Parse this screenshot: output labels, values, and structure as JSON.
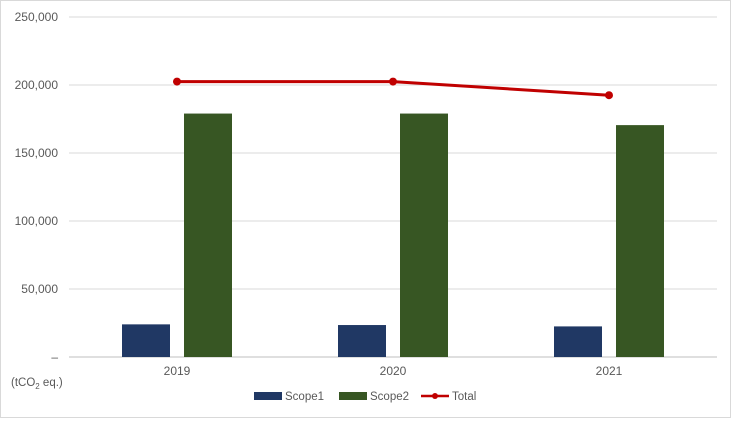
{
  "chart_data": {
    "type": "bar",
    "title": "",
    "unit_label": {
      "prefix": "(tCO",
      "subscript": "2",
      "suffix": " eq.)"
    },
    "categories": [
      "2019",
      "2020",
      "2021"
    ],
    "ylim": [
      0,
      250000
    ],
    "yticks": [
      {
        "value": 0,
        "label": "–"
      },
      {
        "value": 50000,
        "label": "50,000"
      },
      {
        "value": 100000,
        "label": "100,000"
      },
      {
        "value": 150000,
        "label": "150,000"
      },
      {
        "value": 200000,
        "label": "200,000"
      },
      {
        "value": 250000,
        "label": "250,000"
      }
    ],
    "grid": true,
    "legend_position": "bottom",
    "series": [
      {
        "name": "Scope1",
        "type": "bar",
        "color": "#203864",
        "values": [
          24000,
          23500,
          22500
        ]
      },
      {
        "name": "Scope2",
        "type": "bar",
        "color": "#375623",
        "values": [
          179000,
          179000,
          170500
        ]
      },
      {
        "name": "Total",
        "type": "line",
        "color": "#c00000",
        "values": [
          202500,
          202500,
          192500
        ]
      }
    ]
  }
}
